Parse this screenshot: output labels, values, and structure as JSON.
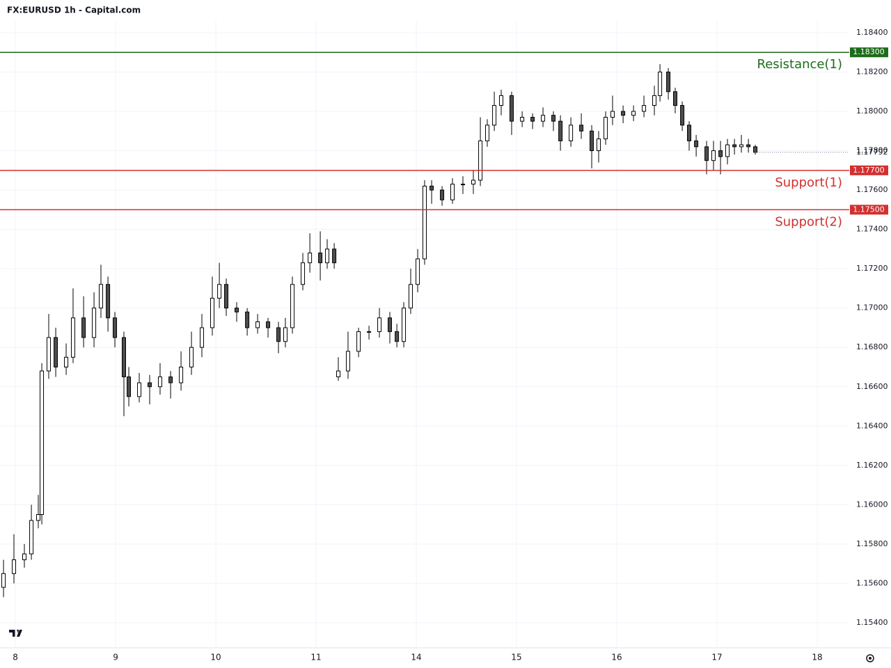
{
  "chart_data": {
    "type": "candlestick",
    "title": "FX:EURUSD 1h - Capital.com",
    "x": [
      -0.118,
      -0.014,
      0.09,
      0.16,
      0.229,
      0.264,
      0.333,
      0.403,
      0.507,
      0.576,
      0.681,
      0.785,
      0.854,
      0.924,
      0.993,
      1.083,
      1.132,
      1.236,
      1.34,
      1.444,
      1.549,
      1.653,
      1.757,
      1.861,
      1.965,
      2.035,
      2.104,
      2.208,
      2.313,
      2.417,
      2.521,
      2.625,
      2.694,
      2.764,
      2.868,
      2.938,
      3.042,
      3.111,
      3.181,
      3.222,
      3.319,
      3.424,
      3.528,
      3.632,
      3.736,
      3.806,
      3.875,
      3.944,
      4.014,
      4.083,
      4.153,
      4.257,
      4.361,
      4.465,
      4.569,
      4.639,
      4.708,
      4.778,
      4.847,
      4.951,
      5.056,
      5.16,
      5.264,
      5.368,
      5.438,
      5.542,
      5.646,
      5.75,
      5.819,
      5.889,
      5.958,
      6.063,
      6.167,
      6.271,
      6.375,
      6.431,
      6.514,
      6.583,
      6.653,
      6.722,
      6.792,
      6.896,
      6.965,
      7.035,
      7.104,
      7.174,
      7.243,
      7.313,
      7.382
    ],
    "open": [
      1.1558,
      1.1565,
      1.1572,
      1.1575,
      1.1592,
      1.1595,
      1.1668,
      1.1685,
      1.167,
      1.1675,
      1.1695,
      1.1685,
      1.17,
      1.1712,
      1.1695,
      1.1685,
      1.1665,
      1.1655,
      1.1662,
      1.166,
      1.1665,
      1.1662,
      1.167,
      1.168,
      1.169,
      1.1705,
      1.1712,
      1.17,
      1.1698,
      1.169,
      1.1693,
      1.169,
      1.1683,
      1.169,
      1.1712,
      1.1723,
      1.1728,
      1.1723,
      1.173,
      1.1665,
      1.1668,
      1.1678,
      1.1688,
      1.1688,
      1.1695,
      1.1688,
      1.1683,
      1.17,
      1.1712,
      1.1725,
      1.1762,
      1.176,
      1.1755,
      1.1763,
      1.1763,
      1.1765,
      1.1785,
      1.1793,
      1.1803,
      1.1808,
      1.1795,
      1.1797,
      1.1795,
      1.1798,
      1.1795,
      1.1785,
      1.1793,
      1.179,
      1.178,
      1.1786,
      1.1797,
      1.18,
      1.1798,
      1.18,
      1.1803,
      1.1808,
      1.182,
      1.181,
      1.1803,
      1.1793,
      1.1785,
      1.1782,
      1.1775,
      1.178,
      1.1777,
      1.1783,
      1.1782,
      1.1783,
      1.1782
    ],
    "high": [
      1.1572,
      1.1585,
      1.158,
      1.16,
      1.1605,
      1.1672,
      1.1697,
      1.169,
      1.1682,
      1.171,
      1.1706,
      1.1708,
      1.1722,
      1.1716,
      1.1698,
      1.1688,
      1.167,
      1.1667,
      1.1666,
      1.1672,
      1.1668,
      1.1678,
      1.1688,
      1.1697,
      1.1716,
      1.1723,
      1.1715,
      1.1703,
      1.17,
      1.1697,
      1.1695,
      1.1693,
      1.1695,
      1.1716,
      1.1728,
      1.1738,
      1.1739,
      1.1735,
      1.1733,
      1.1675,
      1.1688,
      1.169,
      1.1691,
      1.17,
      1.1698,
      1.1692,
      1.1703,
      1.172,
      1.173,
      1.1765,
      1.1765,
      1.1762,
      1.1766,
      1.1767,
      1.177,
      1.1797,
      1.1796,
      1.181,
      1.1811,
      1.181,
      1.18,
      1.1799,
      1.1802,
      1.18,
      1.1798,
      1.1797,
      1.1799,
      1.1793,
      1.179,
      1.18,
      1.1808,
      1.1803,
      1.1803,
      1.1808,
      1.1813,
      1.1824,
      1.1822,
      1.1812,
      1.1805,
      1.1795,
      1.1788,
      1.1785,
      1.1785,
      1.1785,
      1.1786,
      1.1786,
      1.1788,
      1.1786,
      1.1783
    ],
    "low": [
      1.1553,
      1.156,
      1.1568,
      1.1572,
      1.1588,
      1.159,
      1.1664,
      1.1665,
      1.1666,
      1.1672,
      1.168,
      1.168,
      1.1695,
      1.1688,
      1.168,
      1.1645,
      1.165,
      1.1652,
      1.1651,
      1.1656,
      1.1654,
      1.1658,
      1.1666,
      1.1675,
      1.1686,
      1.17,
      1.1696,
      1.1693,
      1.1686,
      1.1687,
      1.1685,
      1.1677,
      1.168,
      1.1687,
      1.1709,
      1.1718,
      1.1714,
      1.172,
      1.172,
      1.1663,
      1.1664,
      1.1675,
      1.1684,
      1.1685,
      1.1682,
      1.168,
      1.168,
      1.1697,
      1.1708,
      1.1722,
      1.1753,
      1.1752,
      1.1753,
      1.1758,
      1.1758,
      1.1762,
      1.1782,
      1.179,
      1.1798,
      1.1788,
      1.1792,
      1.1791,
      1.1792,
      1.179,
      1.178,
      1.1782,
      1.1786,
      1.1771,
      1.1774,
      1.1783,
      1.1793,
      1.1794,
      1.1795,
      1.1797,
      1.1798,
      1.1805,
      1.1806,
      1.1799,
      1.179,
      1.178,
      1.1777,
      1.1768,
      1.177,
      1.1768,
      1.1773,
      1.1778,
      1.1779,
      1.1779,
      1.1778
    ],
    "close": [
      1.1565,
      1.1572,
      1.1575,
      1.1592,
      1.1595,
      1.1668,
      1.1685,
      1.167,
      1.1675,
      1.1695,
      1.1685,
      1.17,
      1.1712,
      1.1695,
      1.1685,
      1.1665,
      1.1655,
      1.1662,
      1.166,
      1.1665,
      1.1662,
      1.167,
      1.168,
      1.169,
      1.1705,
      1.1712,
      1.17,
      1.1698,
      1.169,
      1.1693,
      1.169,
      1.1683,
      1.169,
      1.1712,
      1.1723,
      1.1728,
      1.1723,
      1.173,
      1.1723,
      1.1668,
      1.1678,
      1.1688,
      1.1688,
      1.1695,
      1.1688,
      1.1683,
      1.17,
      1.1712,
      1.1725,
      1.1762,
      1.176,
      1.1755,
      1.1763,
      1.1763,
      1.1765,
      1.1785,
      1.1793,
      1.1803,
      1.1808,
      1.1795,
      1.1797,
      1.1795,
      1.1798,
      1.1795,
      1.1785,
      1.1793,
      1.179,
      1.178,
      1.1786,
      1.1797,
      1.18,
      1.1798,
      1.18,
      1.1803,
      1.1808,
      1.182,
      1.181,
      1.1803,
      1.1793,
      1.1785,
      1.1782,
      1.1775,
      1.178,
      1.1777,
      1.1783,
      1.1782,
      1.1783,
      1.1782,
      1.17792
    ],
    "up_color": "#ffffff",
    "down_color": "#4d4d4d",
    "border_color": "#000000",
    "xlim": [
      -0.153,
      8.319
    ],
    "xticks": [
      {
        "value": 0,
        "label": "8"
      },
      {
        "value": 1,
        "label": "9"
      },
      {
        "value": 2,
        "label": "10"
      },
      {
        "value": 3,
        "label": "11"
      },
      {
        "value": 4,
        "label": "14"
      },
      {
        "value": 5,
        "label": "15"
      },
      {
        "value": 6,
        "label": "16"
      },
      {
        "value": 7,
        "label": "17"
      },
      {
        "value": 8,
        "label": "18"
      }
    ],
    "ylim": [
      1.15276,
      1.1846
    ],
    "yticks": [
      {
        "value": 1.154,
        "label": "1.15400"
      },
      {
        "value": 1.156,
        "label": "1.15600"
      },
      {
        "value": 1.158,
        "label": "1.15800"
      },
      {
        "value": 1.16,
        "label": "1.16000"
      },
      {
        "value": 1.162,
        "label": "1.16200"
      },
      {
        "value": 1.164,
        "label": "1.16400"
      },
      {
        "value": 1.166,
        "label": "1.16600"
      },
      {
        "value": 1.168,
        "label": "1.16800"
      },
      {
        "value": 1.17,
        "label": "1.17000"
      },
      {
        "value": 1.172,
        "label": "1.17200"
      },
      {
        "value": 1.174,
        "label": "1.17400"
      },
      {
        "value": 1.176,
        "label": "1.17600"
      },
      {
        "value": 1.178,
        "label": "1.17800"
      },
      {
        "value": 1.18,
        "label": "1.18000"
      },
      {
        "value": 1.182,
        "label": "1.18200"
      },
      {
        "value": 1.184,
        "label": "1.18400"
      }
    ],
    "grid": true,
    "levels": [
      {
        "name": "Resistance(1)",
        "value": 1.183,
        "label": "1.18300",
        "color": "#1e6b1a"
      },
      {
        "name": "Support(1)",
        "value": 1.177,
        "label": "1.17700",
        "color": "#d32f2f"
      },
      {
        "name": "Support(2)",
        "value": 1.175,
        "label": "1.17500",
        "color": "#d32f2f"
      }
    ],
    "last_price": 1.17792
  }
}
